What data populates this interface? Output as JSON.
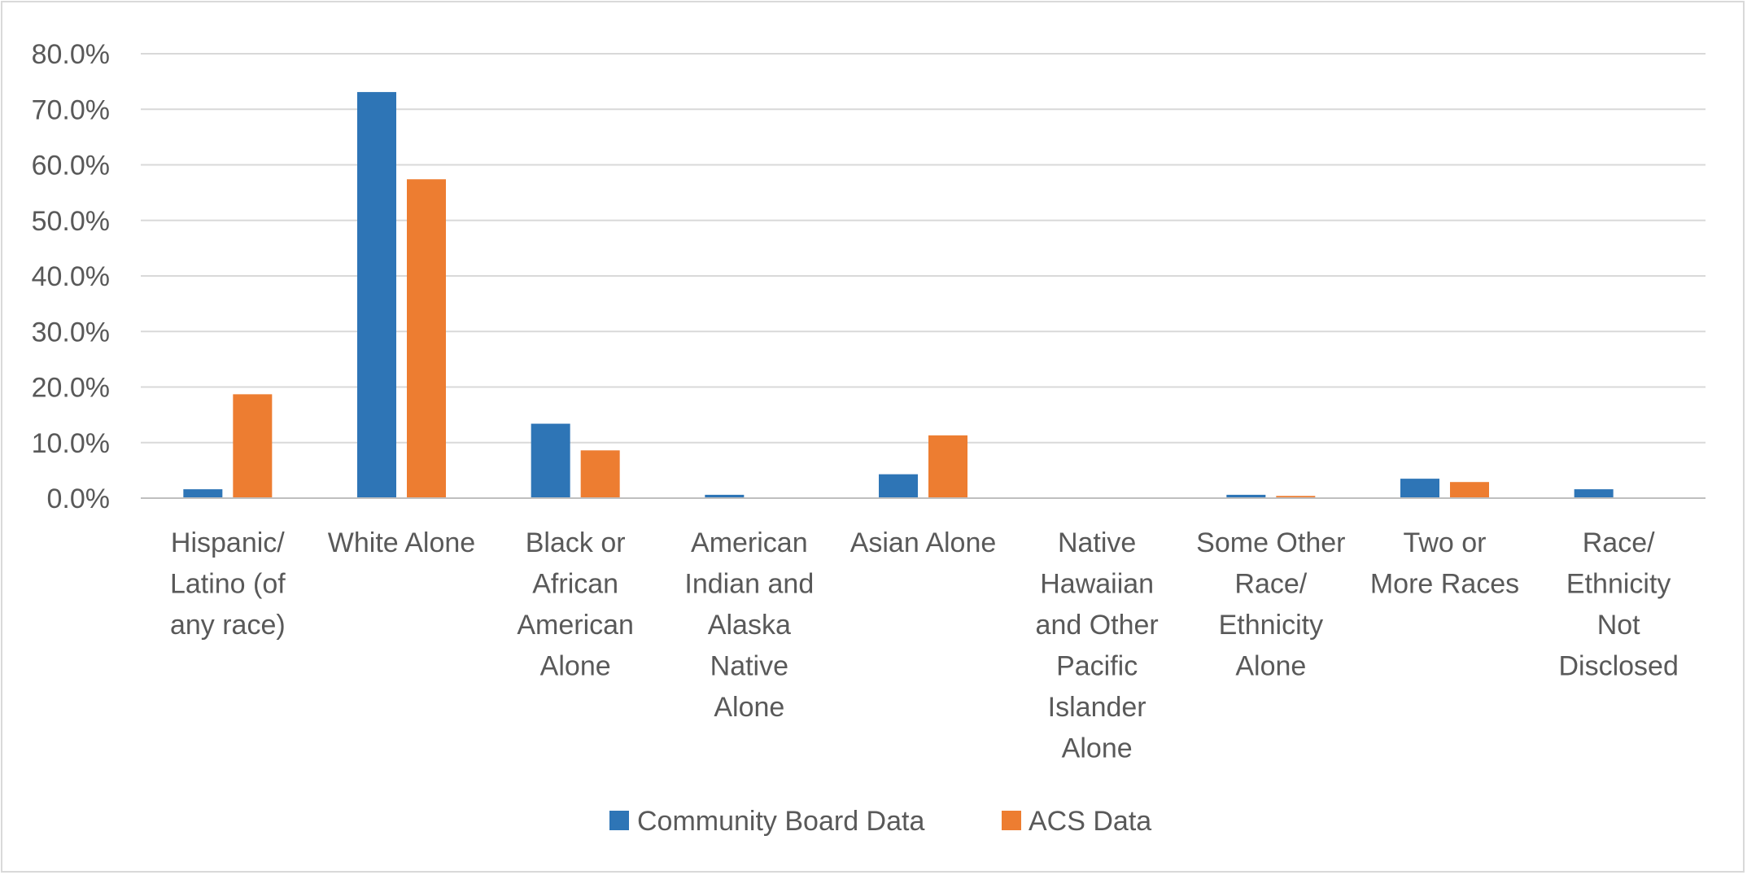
{
  "colors": {
    "series_1": "#2e75b6",
    "series_2": "#ed7d31",
    "gridline": "#d9d9d9",
    "axis": "#bfbfbf",
    "text": "#595959"
  },
  "chart_data": {
    "type": "bar",
    "title": "",
    "xlabel": "",
    "ylabel": "",
    "ylim": [
      0,
      0.8
    ],
    "yticks": [
      0,
      0.1,
      0.2,
      0.3,
      0.4,
      0.5,
      0.6,
      0.7,
      0.8
    ],
    "ytick_labels": [
      "0.0%",
      "10.0%",
      "20.0%",
      "30.0%",
      "40.0%",
      "50.0%",
      "60.0%",
      "70.0%",
      "80.0%"
    ],
    "grid": true,
    "legend_position": "bottom",
    "categories": [
      "Hispanic/ Latino (of any race)",
      "White Alone",
      "Black or African American Alone",
      "American Indian and Alaska Native Alone",
      "Asian Alone",
      "Native Hawaiian and Other Pacific Islander Alone",
      "Some Other Race/ Ethnicity Alone",
      "Two or More Races",
      "Race/ Ethnicity Not Disclosed"
    ],
    "category_label_lines": [
      [
        "Hispanic/",
        "Latino (of",
        "any race)"
      ],
      [
        "White Alone"
      ],
      [
        "Black or",
        "African",
        "American",
        "Alone"
      ],
      [
        "American",
        "Indian and",
        "Alaska",
        "Native",
        "Alone"
      ],
      [
        "Asian Alone"
      ],
      [
        "Native",
        "Hawaiian",
        "and Other",
        "Pacific",
        "Islander",
        "Alone"
      ],
      [
        "Some Other",
        "Race/",
        "Ethnicity",
        "Alone"
      ],
      [
        "Two or",
        "More Races"
      ],
      [
        "Race/",
        "Ethnicity",
        "Not",
        "Disclosed"
      ]
    ],
    "series": [
      {
        "name": "Community Board Data",
        "color": "#2e75b6",
        "values": [
          0.016,
          0.731,
          0.134,
          0.006,
          0.043,
          0.0,
          0.006,
          0.035,
          0.016
        ]
      },
      {
        "name": "ACS Data",
        "color": "#ed7d31",
        "values": [
          0.187,
          0.574,
          0.086,
          0.0,
          0.113,
          0.0,
          0.004,
          0.029,
          0.0
        ]
      }
    ]
  }
}
